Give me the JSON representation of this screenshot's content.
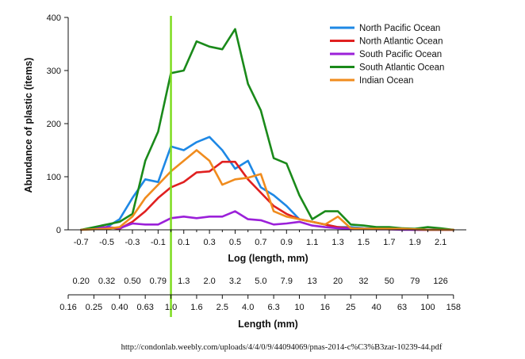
{
  "chart_data": {
    "type": "line",
    "xlabel": "Log (length, mm)",
    "ylabel": "Abundance of plastic (items)",
    "xlim": [
      -0.8,
      2.3
    ],
    "ylim": [
      0,
      400
    ],
    "x_ticks": [
      "-0.7",
      "-0.5",
      "-0.3",
      "-0.1",
      "0.1",
      "0.3",
      "0.5",
      "0.7",
      "0.9",
      "1.1",
      "1.3",
      "1.5",
      "1.7",
      "1.9",
      "2.1"
    ],
    "y_ticks": [
      "0",
      "100",
      "200",
      "300",
      "400"
    ],
    "vertical_marker": {
      "x": 0.0,
      "color": "#7ddc1f"
    },
    "series": [
      {
        "name": "North Pacific Ocean",
        "color": "#1e88e5",
        "x": [
          -0.7,
          -0.5,
          -0.4,
          -0.3,
          -0.2,
          -0.1,
          0.0,
          0.1,
          0.2,
          0.3,
          0.4,
          0.5,
          0.6,
          0.7,
          0.8,
          0.9,
          1.0,
          1.1,
          1.2,
          1.3,
          1.4,
          1.5,
          1.6,
          1.7,
          1.8,
          1.9,
          2.0,
          2.1,
          2.2
        ],
        "values": [
          0,
          5,
          20,
          60,
          95,
          90,
          157,
          150,
          165,
          175,
          150,
          115,
          130,
          80,
          65,
          45,
          20,
          15,
          10,
          5,
          5,
          3,
          2,
          2,
          1,
          1,
          0,
          0,
          0
        ]
      },
      {
        "name": "North Atlantic Ocean",
        "color": "#e02020",
        "x": [
          -0.7,
          -0.5,
          -0.4,
          -0.3,
          -0.2,
          -0.1,
          0.0,
          0.1,
          0.2,
          0.3,
          0.4,
          0.5,
          0.6,
          0.7,
          0.8,
          0.9,
          1.0,
          1.1,
          1.2,
          1.3,
          1.4,
          1.5,
          1.6,
          1.7,
          1.8,
          1.9,
          2.0,
          2.1,
          2.2
        ],
        "values": [
          0,
          5,
          2,
          15,
          35,
          60,
          80,
          90,
          108,
          110,
          128,
          128,
          95,
          70,
          45,
          30,
          20,
          15,
          10,
          5,
          3,
          2,
          2,
          1,
          1,
          0,
          0,
          0,
          0
        ]
      },
      {
        "name": "South Pacific Ocean",
        "color": "#9b20d9",
        "x": [
          -0.7,
          -0.5,
          -0.4,
          -0.3,
          -0.2,
          -0.1,
          0.0,
          0.1,
          0.2,
          0.3,
          0.4,
          0.5,
          0.6,
          0.7,
          0.8,
          0.9,
          1.0,
          1.1,
          1.2,
          1.3,
          1.4,
          1.5,
          1.6,
          1.7,
          1.8,
          1.9,
          2.0,
          2.1,
          2.2
        ],
        "values": [
          0,
          5,
          3,
          12,
          10,
          10,
          22,
          25,
          22,
          25,
          25,
          35,
          20,
          18,
          10,
          12,
          15,
          8,
          5,
          3,
          2,
          2,
          1,
          1,
          0,
          0,
          0,
          0,
          0
        ]
      },
      {
        "name": "South Atlantic Ocean",
        "color": "#1a8a1a",
        "x": [
          -0.7,
          -0.5,
          -0.4,
          -0.3,
          -0.2,
          -0.1,
          0.0,
          0.1,
          0.2,
          0.3,
          0.4,
          0.5,
          0.6,
          0.7,
          0.8,
          0.9,
          1.0,
          1.1,
          1.2,
          1.3,
          1.4,
          1.5,
          1.6,
          1.7,
          1.8,
          1.9,
          2.0,
          2.1,
          2.2
        ],
        "values": [
          0,
          10,
          15,
          30,
          130,
          185,
          295,
          300,
          355,
          345,
          340,
          378,
          275,
          225,
          135,
          125,
          65,
          20,
          35,
          35,
          10,
          8,
          5,
          5,
          3,
          2,
          5,
          3,
          0
        ]
      },
      {
        "name": "Indian Ocean",
        "color": "#f08c1e",
        "x": [
          -0.7,
          -0.5,
          -0.4,
          -0.3,
          -0.2,
          -0.1,
          0.0,
          0.1,
          0.2,
          0.3,
          0.4,
          0.5,
          0.6,
          0.7,
          0.8,
          0.9,
          1.0,
          1.1,
          1.2,
          1.3,
          1.4,
          1.5,
          1.6,
          1.7,
          1.8,
          1.9,
          2.0,
          2.1,
          2.2
        ],
        "values": [
          0,
          2,
          5,
          25,
          60,
          85,
          110,
          130,
          150,
          130,
          85,
          95,
          98,
          105,
          35,
          25,
          20,
          15,
          10,
          25,
          3,
          2,
          2,
          2,
          2,
          1,
          0,
          0,
          0
        ]
      }
    ],
    "secondary_axes": [
      {
        "ticks": [
          "0.20",
          "0.32",
          "0.50",
          "0.79",
          "1.3",
          "2.0",
          "3.2",
          "5.0",
          "7.9",
          "13",
          "20",
          "32",
          "50",
          "79",
          "126"
        ]
      },
      {
        "label": "Length (mm)",
        "ticks": [
          "0.16",
          "0.25",
          "0.40",
          "0.63",
          "1.0",
          "1.6",
          "2.5",
          "4.0",
          "6.3",
          "10",
          "16",
          "25",
          "40",
          "63",
          "100",
          "158"
        ]
      }
    ],
    "source": "http://condonlab.weebly.com/uploads/4/4/0/9/44094069/pnas-2014-c%C3%B3zar-10239-44.pdf"
  }
}
